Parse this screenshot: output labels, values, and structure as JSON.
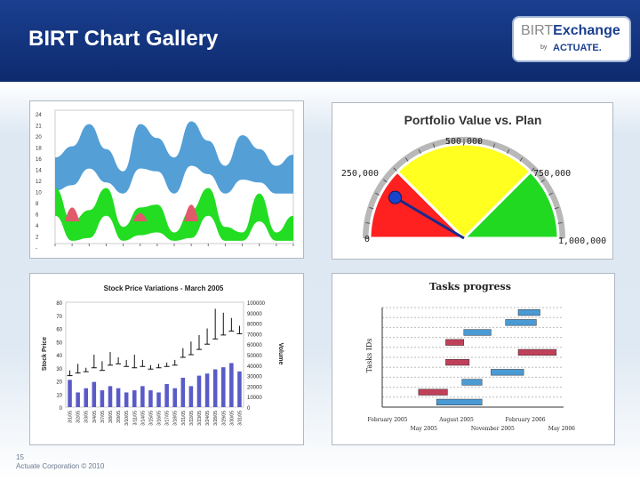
{
  "slide": {
    "title": "BIRT Chart Gallery",
    "logo_birt": "BIRT",
    "logo_exchange": "Exchange",
    "logo_by": "by",
    "logo_actuate": "ACTUATE.",
    "footer_page": "15",
    "footer_copyright": "Actuate Corporation © 2010"
  },
  "colors": {
    "header": "#1b3f8f",
    "blue_area": "#4a9ad4",
    "green_area": "#22dd22",
    "pink_area": "#e05a6a"
  },
  "chart_data": [
    {
      "type": "area",
      "title": "",
      "ytick_labels": [
        "24",
        "21",
        "20",
        "18",
        "16",
        "14",
        "12",
        "10",
        "8",
        "6",
        "4",
        "2",
        "-"
      ],
      "series": [
        {
          "values": [
            15.5,
            17.5,
            21.5,
            17,
            13,
            21.5,
            19,
            15.5,
            22,
            18.5,
            14,
            19.5,
            17,
            14,
            16
          ]
        },
        {
          "values": [
            10,
            4,
            6,
            10,
            3,
            6.5,
            7,
            2,
            6,
            10,
            3,
            2,
            9,
            2,
            5
          ]
        },
        {
          "values": [
            0,
            6,
            0,
            0,
            0,
            4,
            0,
            0,
            7,
            0,
            0,
            0,
            0,
            0,
            0
          ]
        }
      ]
    },
    {
      "type": "gauge",
      "title": "Portfolio Value vs. Plan",
      "labels": [
        "0",
        "250,000",
        "500,000",
        "750,000",
        "1,000,000"
      ],
      "min": 0,
      "max": 1000000,
      "bands": [
        {
          "from": 0,
          "to": 250000,
          "color": "#ff2020"
        },
        {
          "from": 250000,
          "to": 750000,
          "color": "#ffff20"
        },
        {
          "from": 750000,
          "to": 1000000,
          "color": "#22d922"
        }
      ],
      "value": 170000
    },
    {
      "type": "bar",
      "title": "Stock Price Variations - March 2005",
      "ylabel": "Stock Price",
      "y2label": "Volume",
      "yticks": [
        "80",
        "70",
        "60",
        "50",
        "40",
        "30",
        "20",
        "10",
        "0"
      ],
      "y2ticks": [
        "100000",
        "90000",
        "80000",
        "70000",
        "60000",
        "50000",
        "40000",
        "30000",
        "20000",
        "10000",
        "0"
      ],
      "categories": [
        "3/1/05",
        "3/2/05",
        "3/3/05",
        "3/4/05",
        "3/7/05",
        "3/8/05",
        "3/9/05",
        "3/10/05",
        "3/11/05",
        "3/14/05",
        "3/15/05",
        "3/16/05",
        "3/17/05",
        "3/18/05",
        "3/21/05",
        "3/22/05",
        "3/23/05",
        "3/24/05",
        "3/28/05",
        "3/29/05",
        "3/30/05",
        "3/31/05"
      ],
      "volume": [
        26000,
        14000,
        18000,
        24000,
        16000,
        20000,
        18000,
        14000,
        16000,
        20000,
        16000,
        14000,
        22000,
        18000,
        28000,
        20000,
        30000,
        32000,
        36000,
        38000,
        42000,
        34000
      ],
      "price_high": [
        28,
        33,
        30,
        40,
        35,
        42,
        38,
        36,
        40,
        36,
        32,
        33,
        34,
        36,
        45,
        50,
        55,
        60,
        75,
        72,
        68,
        62
      ],
      "price_low": [
        24,
        26,
        27,
        30,
        28,
        32,
        33,
        31,
        30,
        31,
        29,
        30,
        31,
        32,
        38,
        40,
        44,
        48,
        52,
        55,
        58,
        56
      ]
    },
    {
      "type": "gantt",
      "title": "Tasks progress",
      "ylabel": "Tasks IDs",
      "xticks_top": [
        "February 2005",
        "August 2005",
        "February 2006"
      ],
      "xticks_bottom": [
        "May 2005",
        "November 2005",
        "May 2006"
      ],
      "tasks": [
        {
          "start": 0.75,
          "end": 0.87,
          "row": 0,
          "color": "#4a9ad4"
        },
        {
          "start": 0.68,
          "end": 0.85,
          "row": 1,
          "color": "#4a9ad4"
        },
        {
          "start": 0.45,
          "end": 0.6,
          "row": 2,
          "color": "#4a9ad4"
        },
        {
          "start": 0.35,
          "end": 0.45,
          "row": 3,
          "color": "#c0405a"
        },
        {
          "start": 0.75,
          "end": 0.96,
          "row": 4,
          "color": "#c0405a"
        },
        {
          "start": 0.35,
          "end": 0.48,
          "row": 5,
          "color": "#c0405a"
        },
        {
          "start": 0.6,
          "end": 0.78,
          "row": 6,
          "color": "#4a9ad4"
        },
        {
          "start": 0.44,
          "end": 0.55,
          "row": 7,
          "color": "#4a9ad4"
        },
        {
          "start": 0.2,
          "end": 0.36,
          "row": 8,
          "color": "#c0405a"
        },
        {
          "start": 0.3,
          "end": 0.55,
          "row": 9,
          "color": "#4a9ad4"
        }
      ]
    }
  ]
}
